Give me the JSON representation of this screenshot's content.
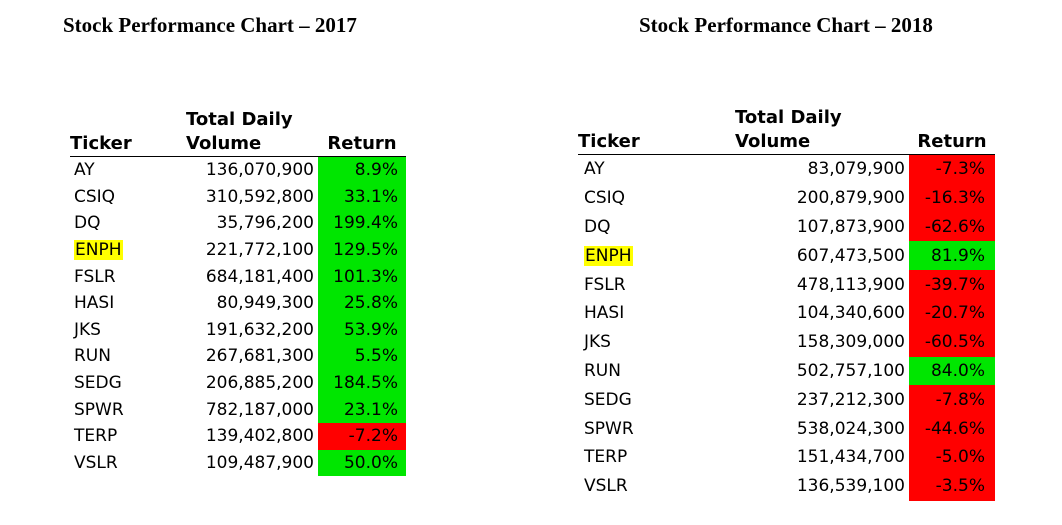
{
  "y2017": {
    "title": "Stock Performance Chart – 2017",
    "headers": {
      "ticker": "Ticker",
      "volume_line1": "Total Daily",
      "volume_line2": "Volume",
      "return": "Return"
    },
    "rows": [
      {
        "ticker": "AY",
        "volume": "136,070,900",
        "ret": "8.9%",
        "status": "pos",
        "highlight": false
      },
      {
        "ticker": "CSIQ",
        "volume": "310,592,800",
        "ret": "33.1%",
        "status": "pos",
        "highlight": false
      },
      {
        "ticker": "DQ",
        "volume": "35,796,200",
        "ret": "199.4%",
        "status": "pos",
        "highlight": false
      },
      {
        "ticker": "ENPH",
        "volume": "221,772,100",
        "ret": "129.5%",
        "status": "pos",
        "highlight": true
      },
      {
        "ticker": "FSLR",
        "volume": "684,181,400",
        "ret": "101.3%",
        "status": "pos",
        "highlight": false
      },
      {
        "ticker": "HASI",
        "volume": "80,949,300",
        "ret": "25.8%",
        "status": "pos",
        "highlight": false
      },
      {
        "ticker": "JKS",
        "volume": "191,632,200",
        "ret": "53.9%",
        "status": "pos",
        "highlight": false
      },
      {
        "ticker": "RUN",
        "volume": "267,681,300",
        "ret": "5.5%",
        "status": "pos",
        "highlight": false
      },
      {
        "ticker": "SEDG",
        "volume": "206,885,200",
        "ret": "184.5%",
        "status": "pos",
        "highlight": false
      },
      {
        "ticker": "SPWR",
        "volume": "782,187,000",
        "ret": "23.1%",
        "status": "pos",
        "highlight": false
      },
      {
        "ticker": "TERP",
        "volume": "139,402,800",
        "ret": "-7.2%",
        "status": "neg",
        "highlight": false
      },
      {
        "ticker": "VSLR",
        "volume": "109,487,900",
        "ret": "50.0%",
        "status": "pos",
        "highlight": false
      }
    ]
  },
  "y2018": {
    "title": "Stock Performance Chart – 2018",
    "headers": {
      "ticker": "Ticker",
      "volume_line1": "Total Daily",
      "volume_line2": "Volume",
      "return": "Return"
    },
    "rows": [
      {
        "ticker": "AY",
        "volume": "83,079,900",
        "ret": "-7.3%",
        "status": "neg",
        "highlight": false
      },
      {
        "ticker": "CSIQ",
        "volume": "200,879,900",
        "ret": "-16.3%",
        "status": "neg",
        "highlight": false
      },
      {
        "ticker": "DQ",
        "volume": "107,873,900",
        "ret": "-62.6%",
        "status": "neg",
        "highlight": false
      },
      {
        "ticker": "ENPH",
        "volume": "607,473,500",
        "ret": "81.9%",
        "status": "pos",
        "highlight": true
      },
      {
        "ticker": "FSLR",
        "volume": "478,113,900",
        "ret": "-39.7%",
        "status": "neg",
        "highlight": false
      },
      {
        "ticker": "HASI",
        "volume": "104,340,600",
        "ret": "-20.7%",
        "status": "neg",
        "highlight": false
      },
      {
        "ticker": "JKS",
        "volume": "158,309,000",
        "ret": "-60.5%",
        "status": "neg",
        "highlight": false
      },
      {
        "ticker": "RUN",
        "volume": "502,757,100",
        "ret": "84.0%",
        "status": "pos",
        "highlight": false
      },
      {
        "ticker": "SEDG",
        "volume": "237,212,300",
        "ret": "-7.8%",
        "status": "neg",
        "highlight": false
      },
      {
        "ticker": "SPWR",
        "volume": "538,024,300",
        "ret": "-44.6%",
        "status": "neg",
        "highlight": false
      },
      {
        "ticker": "TERP",
        "volume": "151,434,700",
        "ret": "-5.0%",
        "status": "neg",
        "highlight": false
      },
      {
        "ticker": "VSLR",
        "volume": "136,539,100",
        "ret": "-3.5%",
        "status": "neg",
        "highlight": false
      }
    ]
  },
  "colors": {
    "positive": "#00e600",
    "negative": "#ff0000",
    "highlight": "#ffff00"
  }
}
